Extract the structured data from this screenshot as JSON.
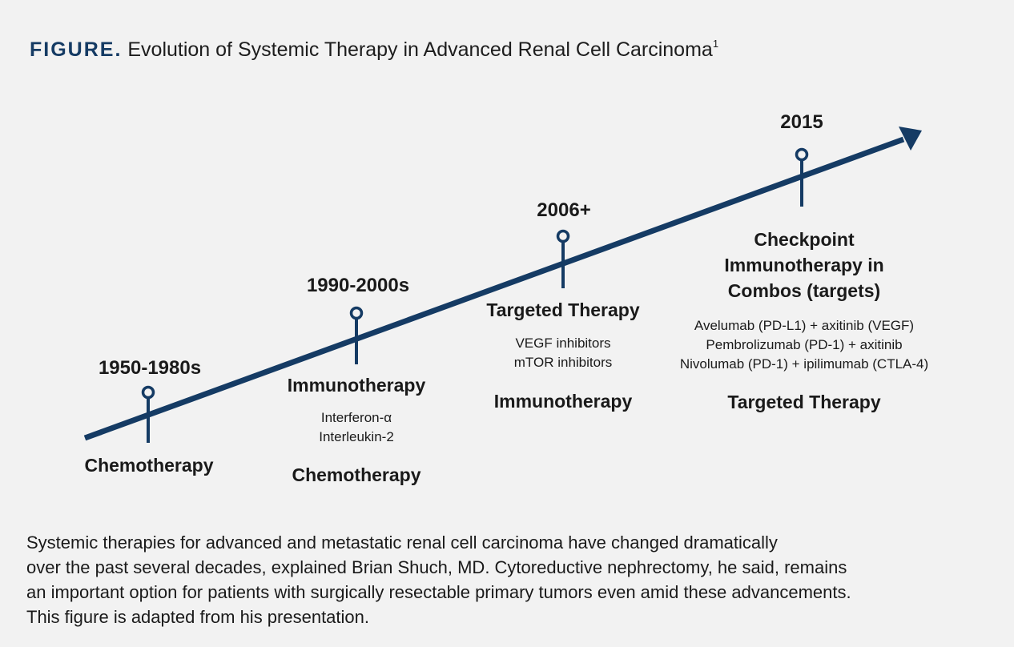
{
  "figure": {
    "label": "FIGURE.",
    "title": "Evolution of Systemic Therapy in Advanced Renal Cell Carcinoma",
    "superscript": "1"
  },
  "colors": {
    "accent": "#153b64",
    "background": "#f2f2f2",
    "text": "#1a1a1a"
  },
  "milestones": [
    {
      "year": "1950-1980s",
      "therapies": [
        {
          "name": "Chemotherapy",
          "examples": []
        }
      ]
    },
    {
      "year": "1990-2000s",
      "therapies": [
        {
          "name": "Immunotherapy",
          "examples": [
            "Interferon-α",
            "Interleukin-2"
          ]
        },
        {
          "name": "Chemotherapy",
          "examples": []
        }
      ]
    },
    {
      "year": "2006+",
      "therapies": [
        {
          "name": "Targeted Therapy",
          "examples": [
            "VEGF inhibitors",
            "mTOR inhibitors"
          ]
        },
        {
          "name": "Immunotherapy",
          "examples": []
        }
      ]
    },
    {
      "year": "2015",
      "therapies": [
        {
          "name_lines": [
            "Checkpoint",
            "Immunotherapy in",
            "Combos (targets)"
          ],
          "examples": [
            "Avelumab (PD-L1) + axitinib (VEGF)",
            "Pembrolizumab (PD-1) + axitinib",
            "Nivolumab (PD-1) + ipilimumab (CTLA-4)"
          ]
        },
        {
          "name": "Targeted Therapy",
          "examples": []
        }
      ]
    }
  ],
  "caption_lines": [
    "Systemic therapies for advanced and metastatic renal cell carcinoma have changed dramatically",
    "over the past several decades, explained Brian Shuch, MD. Cytoreductive nephrectomy, he said, remains",
    "an important option for patients with surgically resectable primary tumors even amid these advancements.",
    "This figure is adapted from his presentation."
  ]
}
